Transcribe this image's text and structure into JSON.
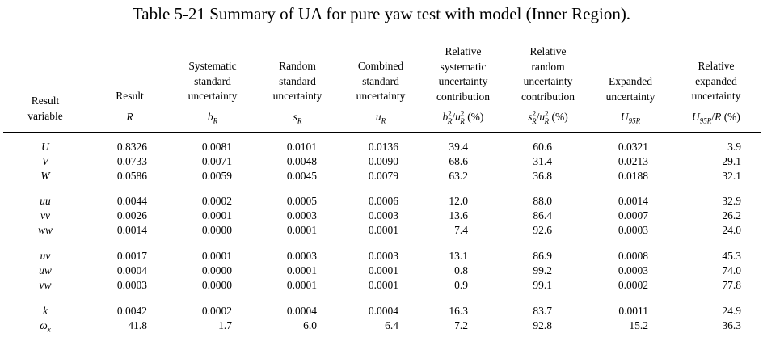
{
  "caption": "Table 5-21  Summary of UA for pure yaw test with model (Inner Region).",
  "headers": {
    "result_variable": [
      "Result",
      "variable"
    ],
    "result": [
      "Result"
    ],
    "systematic": [
      "Systematic",
      "standard",
      "uncertainty"
    ],
    "random": [
      "Random",
      "standard",
      "uncertainty"
    ],
    "combined": [
      "Combined",
      "standard",
      "uncertainty"
    ],
    "rel_systematic": [
      "Relative",
      "systematic",
      "uncertainty",
      "contribution"
    ],
    "rel_random": [
      "Relative",
      "random",
      "uncertainty",
      "contribution"
    ],
    "expanded": [
      "Expanded",
      "uncertainty"
    ],
    "rel_expanded": [
      "Relative",
      "expanded",
      "uncertainty"
    ]
  },
  "symbols": {
    "result": "R",
    "systematic_base": "b",
    "systematic_sub": "R",
    "random_base": "s",
    "random_sub": "R",
    "combined_base": "u",
    "combined_sub": "R",
    "rel_sys_num": "b",
    "rel_sys_sub": "R",
    "rel_sys_sup": "2",
    "rel_sys_den": "u",
    "rel_sys_den_sub": "R",
    "rel_sys_den_sup": "2",
    "rel_sys_unit": "(%)",
    "rel_rand_num": "s",
    "rel_rand_sub": "R",
    "rel_rand_sup": "2",
    "rel_rand_den": "u",
    "rel_rand_den_sub": "R",
    "rel_rand_den_sup": "2",
    "rel_rand_unit": "(%)",
    "expanded_base": "U",
    "expanded_sub": "95R",
    "rel_exp_base": "U",
    "rel_exp_sub": "95R",
    "rel_exp_den": "R",
    "rel_exp_unit": "(%)"
  },
  "rows": [
    {
      "var": "U",
      "vals": [
        "0.8326",
        "0.0081",
        "0.0101",
        "0.0136",
        "39.4",
        "60.6",
        "0.0321",
        "3.9"
      ]
    },
    {
      "var": "V",
      "vals": [
        "0.0733",
        "0.0071",
        "0.0048",
        "0.0090",
        "68.6",
        "31.4",
        "0.0213",
        "29.1"
      ]
    },
    {
      "var": "W",
      "vals": [
        "0.0586",
        "0.0059",
        "0.0045",
        "0.0079",
        "63.2",
        "36.8",
        "0.0188",
        "32.1"
      ]
    },
    {
      "var": "uu",
      "vals": [
        "0.0044",
        "0.0002",
        "0.0005",
        "0.0006",
        "12.0",
        "88.0",
        "0.0014",
        "32.9"
      ]
    },
    {
      "var": "vv",
      "vals": [
        "0.0026",
        "0.0001",
        "0.0003",
        "0.0003",
        "13.6",
        "86.4",
        "0.0007",
        "26.2"
      ]
    },
    {
      "var": "ww",
      "vals": [
        "0.0014",
        "0.0000",
        "0.0001",
        "0.0001",
        "7.4",
        "92.6",
        "0.0003",
        "24.0"
      ]
    },
    {
      "var": "uv",
      "vals": [
        "0.0017",
        "0.0001",
        "0.0003",
        "0.0003",
        "13.1",
        "86.9",
        "0.0008",
        "45.3"
      ]
    },
    {
      "var": "uw",
      "vals": [
        "0.0004",
        "0.0000",
        "0.0001",
        "0.0001",
        "0.8",
        "99.2",
        "0.0003",
        "74.0"
      ]
    },
    {
      "var": "vw",
      "vals": [
        "0.0003",
        "0.0000",
        "0.0001",
        "0.0001",
        "0.9",
        "99.1",
        "0.0002",
        "77.8"
      ]
    },
    {
      "var": "k",
      "vals": [
        "0.0042",
        "0.0002",
        "0.0004",
        "0.0004",
        "16.3",
        "83.7",
        "0.0011",
        "24.9"
      ]
    },
    {
      "var": "ω",
      "var_sub": "x",
      "vals": [
        "41.8",
        "1.7",
        "6.0",
        "6.4",
        "7.2",
        "92.8",
        "15.2",
        "36.3"
      ]
    }
  ]
}
